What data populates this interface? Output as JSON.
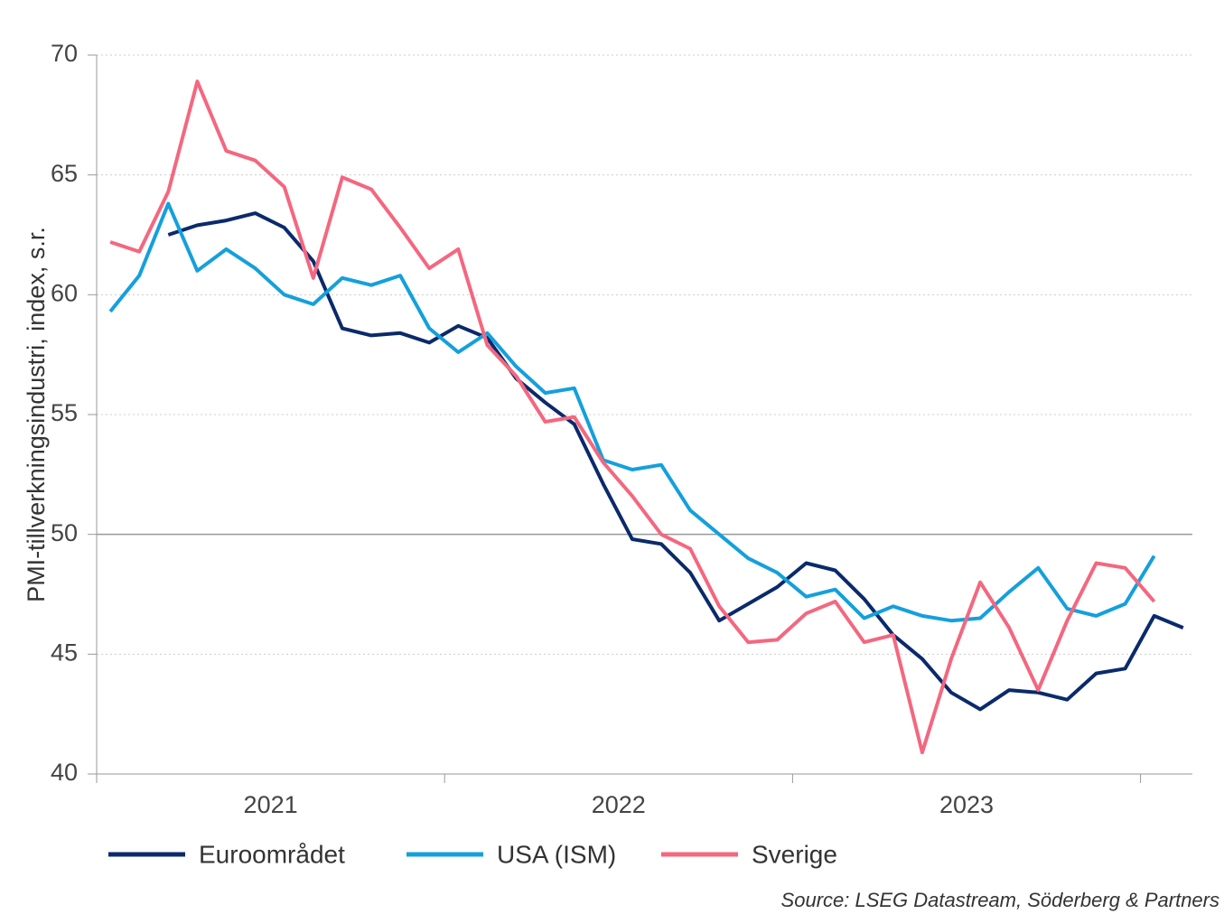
{
  "chart_data": {
    "type": "line",
    "y_label": "PMI-tillverkningsindustri, index, s.r.",
    "source": "Source: LSEG Datastream, Söderberg & Partners",
    "categories": [
      null,
      null,
      null,
      null,
      null,
      null,
      null,
      null,
      null,
      null,
      null,
      null,
      null,
      null,
      null,
      null,
      null,
      null,
      null,
      null,
      null,
      null,
      null,
      null,
      null,
      null,
      null,
      null,
      null,
      null,
      null,
      null,
      null,
      null,
      null,
      null,
      null,
      null
    ],
    "x_group_labels": [
      "2021",
      "2022",
      "2023"
    ],
    "ylim": [
      40,
      70
    ],
    "yticks": [
      40,
      45,
      50,
      55,
      60,
      65,
      70
    ],
    "grid": true,
    "reference_line": 50,
    "series": [
      {
        "name": "Euroområdet",
        "color": "#0a2a6b",
        "values": [
          null,
          null,
          62.5,
          62.9,
          63.1,
          63.4,
          62.8,
          61.4,
          58.6,
          58.3,
          58.4,
          58.0,
          58.7,
          58.2,
          56.5,
          55.5,
          54.6,
          52.1,
          49.8,
          49.6,
          48.4,
          46.4,
          47.1,
          47.8,
          48.8,
          48.5,
          47.3,
          45.8,
          44.8,
          43.4,
          42.7,
          43.5,
          43.4,
          43.1,
          44.2,
          44.4,
          46.6,
          46.1
        ]
      },
      {
        "name": "USA (ISM)",
        "color": "#14a0dc",
        "values": [
          59.3,
          60.8,
          63.8,
          61.0,
          61.9,
          61.1,
          60.0,
          59.6,
          60.7,
          60.4,
          60.8,
          58.6,
          57.6,
          58.4,
          57.0,
          55.9,
          56.1,
          53.1,
          52.7,
          52.9,
          51.0,
          50.0,
          49.0,
          48.4,
          47.4,
          47.7,
          46.5,
          47.0,
          46.6,
          46.4,
          46.5,
          47.6,
          48.6,
          46.9,
          46.6,
          47.1,
          49.1,
          null
        ]
      },
      {
        "name": "Sverige",
        "color": "#f4677f",
        "values": [
          62.2,
          61.8,
          64.3,
          68.9,
          66.0,
          65.6,
          64.5,
          60.7,
          64.9,
          64.4,
          62.8,
          61.1,
          61.9,
          57.9,
          56.6,
          54.7,
          54.9,
          53.0,
          51.6,
          50.0,
          49.4,
          47.0,
          45.5,
          45.6,
          46.7,
          47.2,
          45.5,
          45.8,
          40.9,
          44.8,
          48.0,
          46.1,
          43.5,
          46.4,
          48.8,
          48.6,
          47.2,
          null
        ]
      }
    ]
  }
}
